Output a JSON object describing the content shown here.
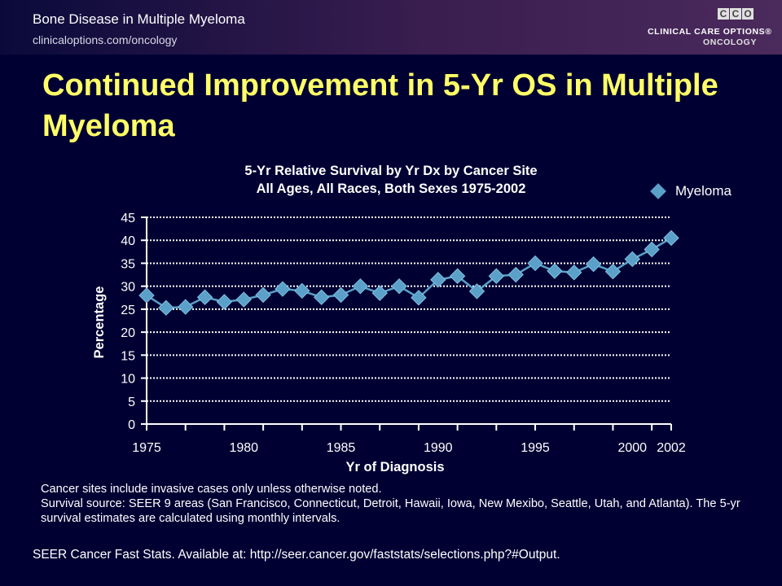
{
  "header": {
    "title": "Bone Disease in Multiple Myeloma",
    "url": "clinicaloptions.com/oncology",
    "logo_letters": [
      "C",
      "C",
      "O"
    ],
    "logo_line1": "CLINICAL CARE OPTIONS®",
    "logo_line2": "ONCOLOGY"
  },
  "slide": {
    "title": "Continued Improvement in 5-Yr OS in Multiple Myeloma"
  },
  "notes": [
    "Cancer sites include invasive cases only unless otherwise noted.",
    "Survival source: SEER 9 areas (San Francisco, Connecticut, Detroit, Hawaii, Iowa, New Mexibo, Seattle, Utah, and Atlanta). The 5-yr survival estimates are calculated using monthly intervals."
  ],
  "footer": "SEER Cancer Fast Stats. Available at: http://seer.cancer.gov/faststats/selections.php?#Output.",
  "colors": {
    "background": "#000033",
    "title": "#ffff66",
    "series": "#5aa0c8",
    "grid": "#ffffff"
  },
  "chart_data": {
    "type": "line",
    "title": "5-Yr Relative Survival by Yr Dx by Cancer Site",
    "subtitle": "All Ages, All Races, Both Sexes 1975-2002",
    "xlabel": "Yr of Diagnosis",
    "ylabel": "Percentage",
    "ylim": [
      0,
      45
    ],
    "yticks": [
      0,
      5,
      10,
      15,
      20,
      25,
      30,
      35,
      40,
      45
    ],
    "xticks": [
      1975,
      1980,
      1985,
      1990,
      1995,
      2000,
      2002
    ],
    "xlim": [
      1975,
      2002
    ],
    "grid": true,
    "legend_position": "top-right",
    "marker": "diamond",
    "x": [
      1975,
      1976,
      1977,
      1978,
      1979,
      1980,
      1981,
      1982,
      1983,
      1984,
      1985,
      1986,
      1987,
      1988,
      1989,
      1990,
      1991,
      1992,
      1993,
      1994,
      1995,
      1996,
      1997,
      1998,
      1999,
      2000,
      2001,
      2002
    ],
    "series": [
      {
        "name": "Myeloma",
        "values": [
          28.0,
          25.3,
          25.5,
          27.6,
          26.6,
          27.1,
          28.1,
          29.4,
          29.0,
          27.6,
          28.1,
          30.0,
          28.5,
          30.0,
          27.5,
          31.4,
          32.2,
          28.9,
          32.2,
          32.5,
          35.0,
          33.3,
          33.0,
          34.8,
          33.2,
          35.9,
          38.0,
          40.5
        ]
      }
    ]
  }
}
